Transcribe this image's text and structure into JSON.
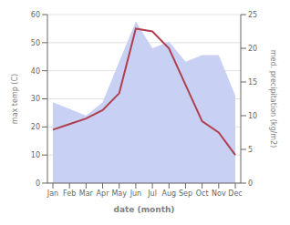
{
  "chart_data": {
    "type": "line",
    "xlabel": "date (month)",
    "ylabel": "max temp (C)",
    "y2label": "med. precipitation (kg/m2)",
    "categories": [
      "Jan",
      "Feb",
      "Mar",
      "Apr",
      "May",
      "Jun",
      "Jul",
      "Aug",
      "Sep",
      "Oct",
      "Nov",
      "Dec"
    ],
    "series": [
      {
        "type": "area",
        "axis": "y2",
        "color": "#c8d0f4",
        "values": [
          12,
          11,
          10,
          12,
          18,
          24,
          20,
          21,
          18,
          19,
          19,
          13
        ]
      },
      {
        "type": "line",
        "color": "#b04050",
        "values": [
          19,
          21,
          23,
          26,
          32,
          55,
          54,
          48,
          35,
          22,
          18,
          10
        ]
      }
    ],
    "ylim": [
      0,
      60
    ],
    "yticks": [
      0,
      10,
      20,
      30,
      40,
      50,
      60
    ],
    "y2lim": [
      0,
      25
    ],
    "y2ticks": [
      0,
      5,
      10,
      15,
      20,
      25
    ],
    "grid": true
  }
}
